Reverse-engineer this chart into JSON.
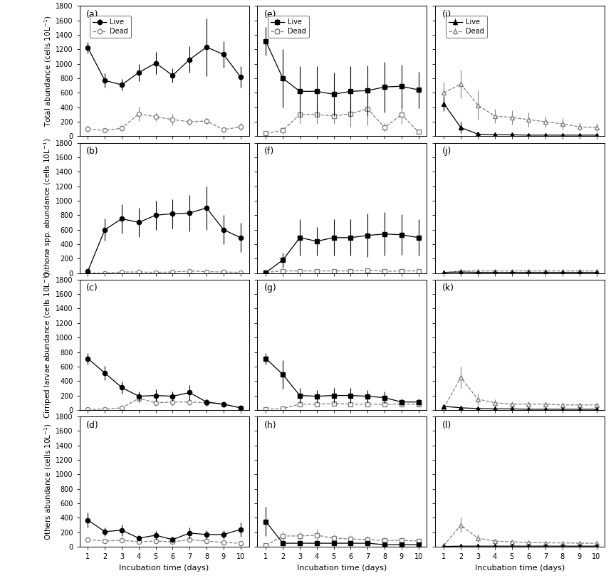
{
  "days": [
    1,
    2,
    3,
    4,
    5,
    6,
    7,
    8,
    9,
    10
  ],
  "panel_a_live": [
    1220,
    770,
    710,
    880,
    1010,
    840,
    1060,
    1230,
    1130,
    820
  ],
  "panel_a_dead": [
    100,
    80,
    110,
    310,
    270,
    230,
    200,
    210,
    90,
    130
  ],
  "panel_a_live_err": [
    80,
    100,
    80,
    120,
    150,
    100,
    180,
    400,
    180,
    150
  ],
  "panel_a_dead_err": [
    50,
    30,
    40,
    100,
    60,
    80,
    50,
    50,
    40,
    60
  ],
  "panel_b_live": [
    30,
    600,
    750,
    700,
    800,
    820,
    830,
    900,
    600,
    490
  ],
  "panel_b_dead": [
    0,
    0,
    15,
    15,
    10,
    15,
    30,
    20,
    15,
    10
  ],
  "panel_b_live_err": [
    10,
    150,
    200,
    200,
    200,
    200,
    250,
    300,
    200,
    200
  ],
  "panel_b_dead_err": [
    0,
    5,
    5,
    5,
    5,
    5,
    20,
    10,
    5,
    5
  ],
  "panel_c_live": [
    710,
    510,
    310,
    190,
    200,
    190,
    240,
    110,
    80,
    30
  ],
  "panel_c_dead": [
    10,
    10,
    30,
    160,
    100,
    110,
    110,
    100,
    80,
    30
  ],
  "panel_c_live_err": [
    80,
    100,
    80,
    60,
    80,
    60,
    100,
    50,
    40,
    20
  ],
  "panel_c_dead_err": [
    5,
    5,
    20,
    60,
    40,
    50,
    50,
    40,
    30,
    15
  ],
  "panel_d_live": [
    370,
    210,
    230,
    120,
    160,
    100,
    190,
    170,
    170,
    240
  ],
  "panel_d_dead": [
    100,
    80,
    90,
    70,
    80,
    70,
    100,
    80,
    60,
    50
  ],
  "panel_d_live_err": [
    100,
    60,
    80,
    40,
    60,
    40,
    80,
    60,
    60,
    100
  ],
  "panel_d_dead_err": [
    40,
    30,
    30,
    20,
    30,
    25,
    40,
    30,
    25,
    20
  ],
  "panel_e_live": [
    1310,
    800,
    620,
    620,
    580,
    620,
    630,
    680,
    690,
    640
  ],
  "panel_e_dead": [
    40,
    80,
    300,
    300,
    280,
    310,
    380,
    120,
    300,
    60
  ],
  "panel_e_live_err": [
    200,
    400,
    350,
    350,
    300,
    350,
    350,
    350,
    300,
    250
  ],
  "panel_e_dead_err": [
    20,
    50,
    120,
    130,
    110,
    180,
    230,
    60,
    130,
    30
  ],
  "panel_f_live": [
    10,
    180,
    490,
    440,
    490,
    490,
    520,
    540,
    530,
    490
  ],
  "panel_f_dead": [
    10,
    30,
    30,
    30,
    30,
    30,
    40,
    25,
    30,
    30
  ],
  "panel_f_live_err": [
    5,
    100,
    250,
    200,
    250,
    250,
    300,
    300,
    280,
    250
  ],
  "panel_f_dead_err": [
    5,
    15,
    20,
    15,
    15,
    15,
    20,
    10,
    15,
    10
  ],
  "panel_g_live": [
    710,
    490,
    200,
    190,
    200,
    200,
    190,
    170,
    110,
    110
  ],
  "panel_g_dead": [
    10,
    20,
    80,
    80,
    90,
    80,
    80,
    80,
    80,
    80
  ],
  "panel_g_live_err": [
    80,
    200,
    100,
    80,
    100,
    100,
    80,
    80,
    50,
    50
  ],
  "panel_g_dead_err": [
    5,
    10,
    30,
    30,
    40,
    30,
    30,
    30,
    30,
    30
  ],
  "panel_h_live": [
    350,
    50,
    50,
    50,
    50,
    50,
    50,
    30,
    30,
    30
  ],
  "panel_h_dead": [
    20,
    150,
    150,
    160,
    120,
    110,
    100,
    90,
    90,
    80
  ],
  "panel_h_live_err": [
    200,
    30,
    30,
    30,
    20,
    20,
    20,
    15,
    15,
    15
  ],
  "panel_h_dead_err": [
    10,
    60,
    60,
    80,
    50,
    50,
    50,
    40,
    40,
    30
  ],
  "panel_i_live": [
    450,
    120,
    30,
    20,
    20,
    15,
    15,
    15,
    15,
    15
  ],
  "panel_i_dead": [
    600,
    720,
    430,
    280,
    260,
    230,
    200,
    170,
    130,
    120
  ],
  "panel_i_live_err": [
    100,
    80,
    20,
    10,
    10,
    10,
    10,
    10,
    10,
    10
  ],
  "panel_i_dead_err": [
    150,
    200,
    200,
    100,
    100,
    100,
    80,
    80,
    60,
    60
  ],
  "panel_j_live": [
    10,
    15,
    10,
    10,
    10,
    10,
    10,
    10,
    10,
    10
  ],
  "panel_j_dead": [
    5,
    30,
    30,
    30,
    30,
    30,
    30,
    30,
    30,
    30
  ],
  "panel_j_live_err": [
    5,
    10,
    5,
    5,
    5,
    5,
    5,
    5,
    5,
    5
  ],
  "panel_j_dead_err": [
    5,
    10,
    10,
    10,
    10,
    10,
    10,
    10,
    10,
    10
  ],
  "panel_k_live": [
    50,
    30,
    20,
    15,
    15,
    10,
    10,
    10,
    10,
    10
  ],
  "panel_k_dead": [
    30,
    450,
    150,
    100,
    80,
    80,
    80,
    70,
    70,
    70
  ],
  "panel_k_live_err": [
    20,
    20,
    10,
    5,
    5,
    5,
    5,
    5,
    5,
    5
  ],
  "panel_k_dead_err": [
    15,
    150,
    80,
    50,
    40,
    35,
    30,
    30,
    30,
    25
  ],
  "panel_l_live": [
    5,
    10,
    10,
    10,
    10,
    10,
    10,
    10,
    10,
    10
  ],
  "panel_l_dead": [
    20,
    300,
    120,
    80,
    70,
    60,
    55,
    55,
    50,
    50
  ],
  "panel_l_live_err": [
    5,
    5,
    5,
    5,
    5,
    5,
    5,
    5,
    5,
    5
  ],
  "panel_l_dead_err": [
    10,
    100,
    60,
    30,
    30,
    20,
    20,
    20,
    20,
    20
  ],
  "ylim": [
    0,
    1800
  ],
  "yticks": [
    0,
    200,
    400,
    600,
    800,
    1000,
    1200,
    1400,
    1600,
    1800
  ],
  "xlim": [
    0.5,
    10.5
  ],
  "xticks": [
    1,
    2,
    3,
    4,
    5,
    6,
    7,
    8,
    9,
    10
  ],
  "panel_labels": [
    "(a)",
    "(b)",
    "(c)",
    "(d)",
    "(e)",
    "(f)",
    "(g)",
    "(h)",
    "(i)",
    "(j)",
    "(k)",
    "(l)"
  ],
  "xlabel": "Incubation time (days)"
}
